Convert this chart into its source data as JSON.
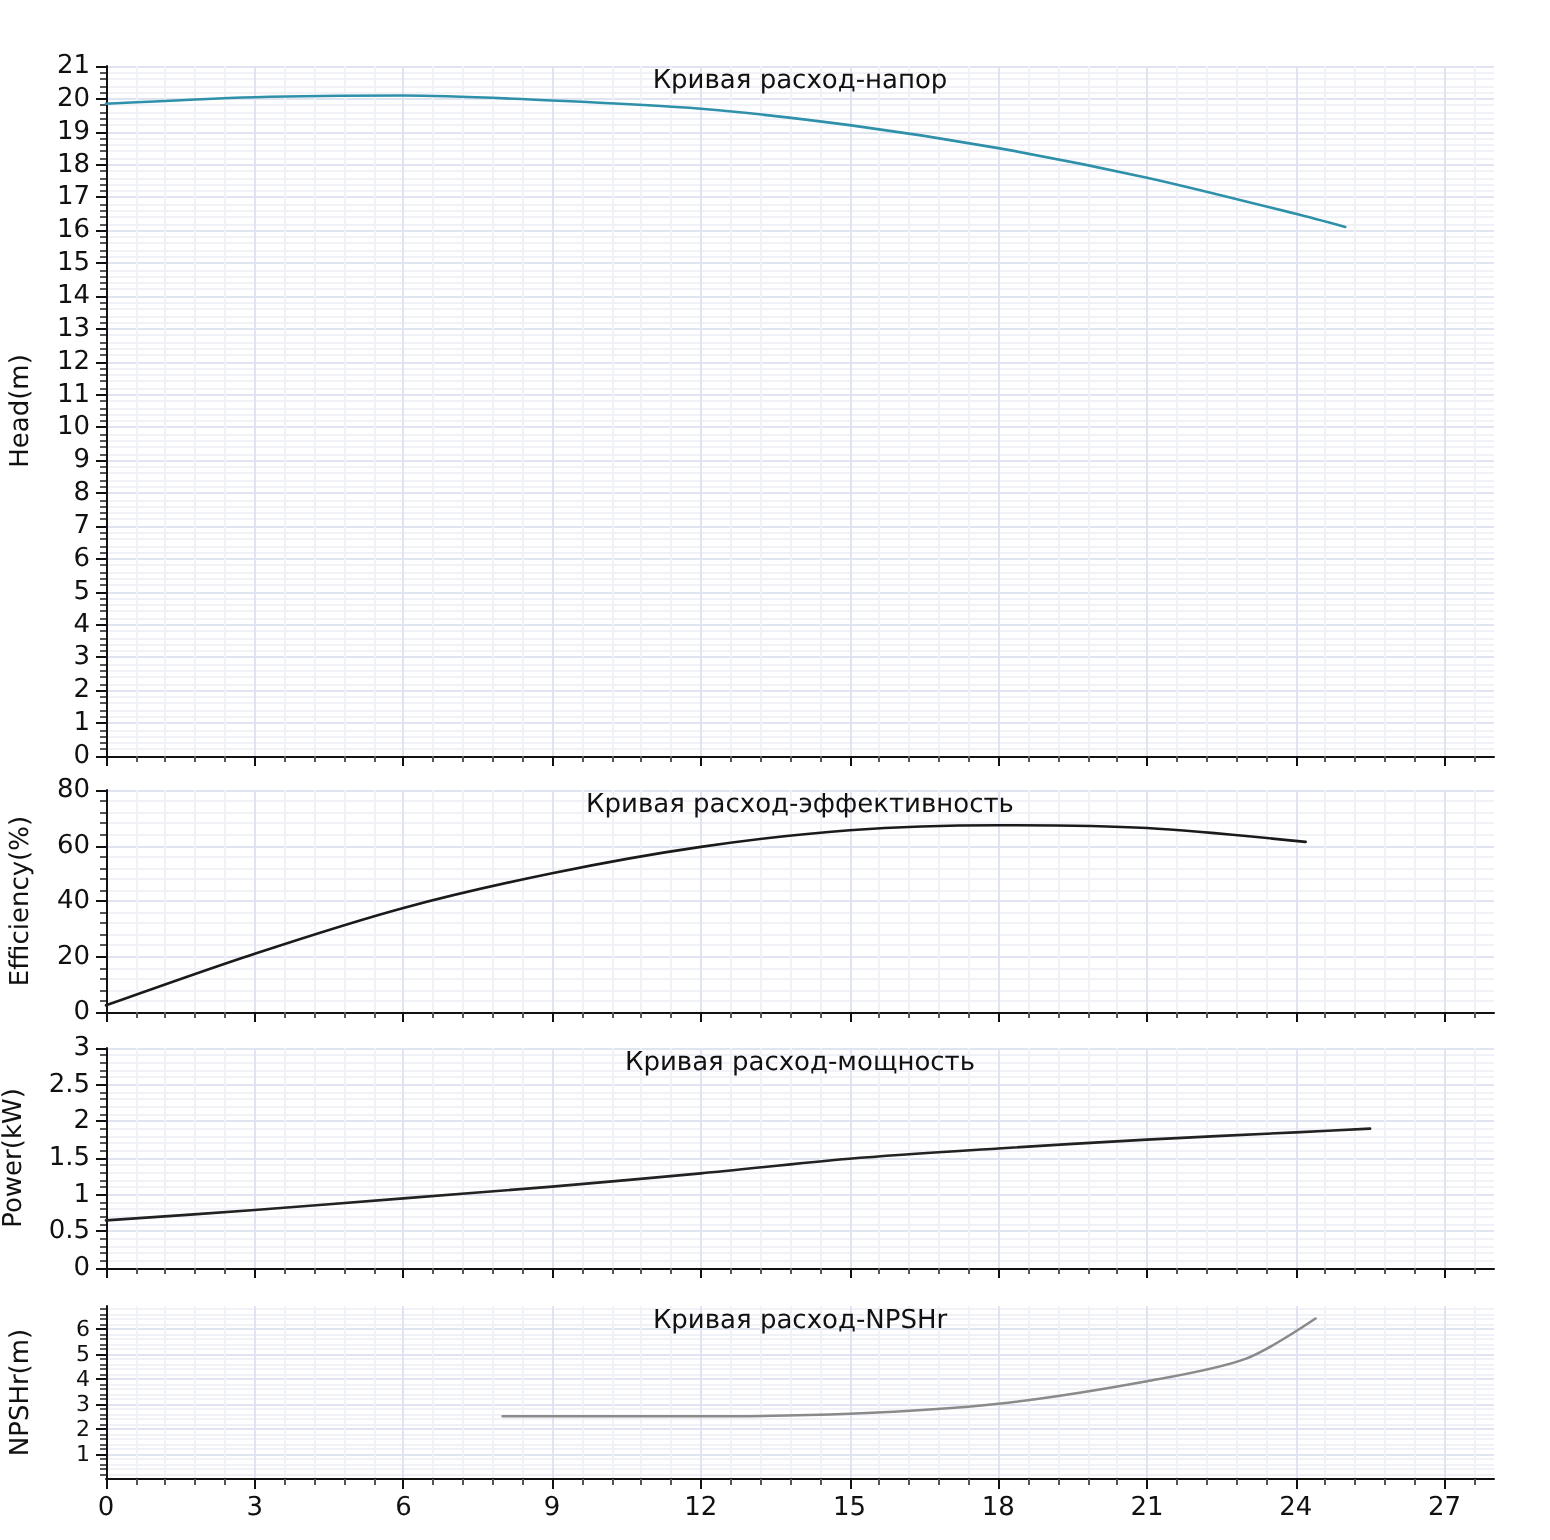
{
  "chart_data": [
    {
      "type": "line",
      "title": "Кривая расход-напор",
      "ylabel": "Head(m)",
      "x": [
        0,
        3,
        6,
        9,
        12,
        15,
        18,
        21,
        24,
        25
      ],
      "series": [
        {
          "color": "#2f90aa",
          "values": [
            19.85,
            20.05,
            20.1,
            19.95,
            19.7,
            19.2,
            18.5,
            17.6,
            16.5,
            16.1
          ]
        }
      ],
      "xlim": [
        0,
        28
      ],
      "xticks": [
        0,
        3,
        6,
        9,
        12,
        15,
        18,
        21,
        24,
        27
      ],
      "ylim": [
        0,
        21
      ],
      "yticks": [
        0,
        1,
        2,
        3,
        4,
        5,
        6,
        7,
        8,
        9,
        10,
        11,
        12,
        13,
        14,
        15,
        16,
        17,
        18,
        19,
        20,
        21
      ],
      "grid": true,
      "tick_labels": "y",
      "marker": "none",
      "line_style": "solid"
    },
    {
      "type": "line",
      "title": "Кривая расход-эффективность",
      "ylabel": "Efficiency(%)",
      "x": [
        0,
        3,
        6,
        9,
        12,
        15,
        18,
        21,
        24.2
      ],
      "series": [
        {
          "color": "#1a1a1a",
          "values": [
            2.4,
            21,
            37.5,
            50,
            59.5,
            65.5,
            67.3,
            66.3,
            61.3
          ]
        }
      ],
      "xlim": [
        0,
        28
      ],
      "xticks": [
        0,
        3,
        6,
        9,
        12,
        15,
        18,
        21,
        24,
        27
      ],
      "ylim": [
        0,
        80
      ],
      "yticks": [
        0,
        20,
        40,
        60,
        80
      ],
      "grid": true,
      "tick_labels": "y",
      "marker": "none",
      "line_style": "solid"
    },
    {
      "type": "line",
      "title": "Кривая расход-мощность",
      "ylabel": "Power(kW)",
      "x": [
        0,
        3,
        6,
        9,
        12,
        15,
        18,
        21,
        24,
        25.5
      ],
      "series": [
        {
          "color": "#222222",
          "values": [
            0.65,
            0.79,
            0.95,
            1.11,
            1.29,
            1.49,
            1.63,
            1.75,
            1.85,
            1.9
          ]
        }
      ],
      "xlim": [
        0,
        28
      ],
      "xticks": [
        0,
        3,
        6,
        9,
        12,
        15,
        18,
        21,
        24,
        27
      ],
      "ylim": [
        0,
        3
      ],
      "yticks": [
        0,
        0.5,
        1,
        1.5,
        2,
        2.5,
        3
      ],
      "grid": true,
      "tick_labels": "y",
      "marker": "none",
      "line_style": "solid"
    },
    {
      "type": "line",
      "title": "Кривая расход-NPSHr",
      "ylabel": "NPSHr(m)",
      "x": [
        8,
        12,
        15,
        18,
        21,
        23,
        24.4
      ],
      "series": [
        {
          "color": "#8a8a8a",
          "values": [
            2.5,
            2.5,
            2.6,
            3.0,
            3.9,
            4.8,
            6.4
          ]
        }
      ],
      "xlim": [
        0,
        28
      ],
      "xticks": [
        0,
        3,
        6,
        9,
        12,
        15,
        18,
        21,
        24,
        27
      ],
      "ylim": [
        0,
        6.9
      ],
      "yticks": [
        1,
        2,
        3,
        4,
        5,
        6
      ],
      "grid": true,
      "marker": "none",
      "line_style": "solid"
    }
  ]
}
